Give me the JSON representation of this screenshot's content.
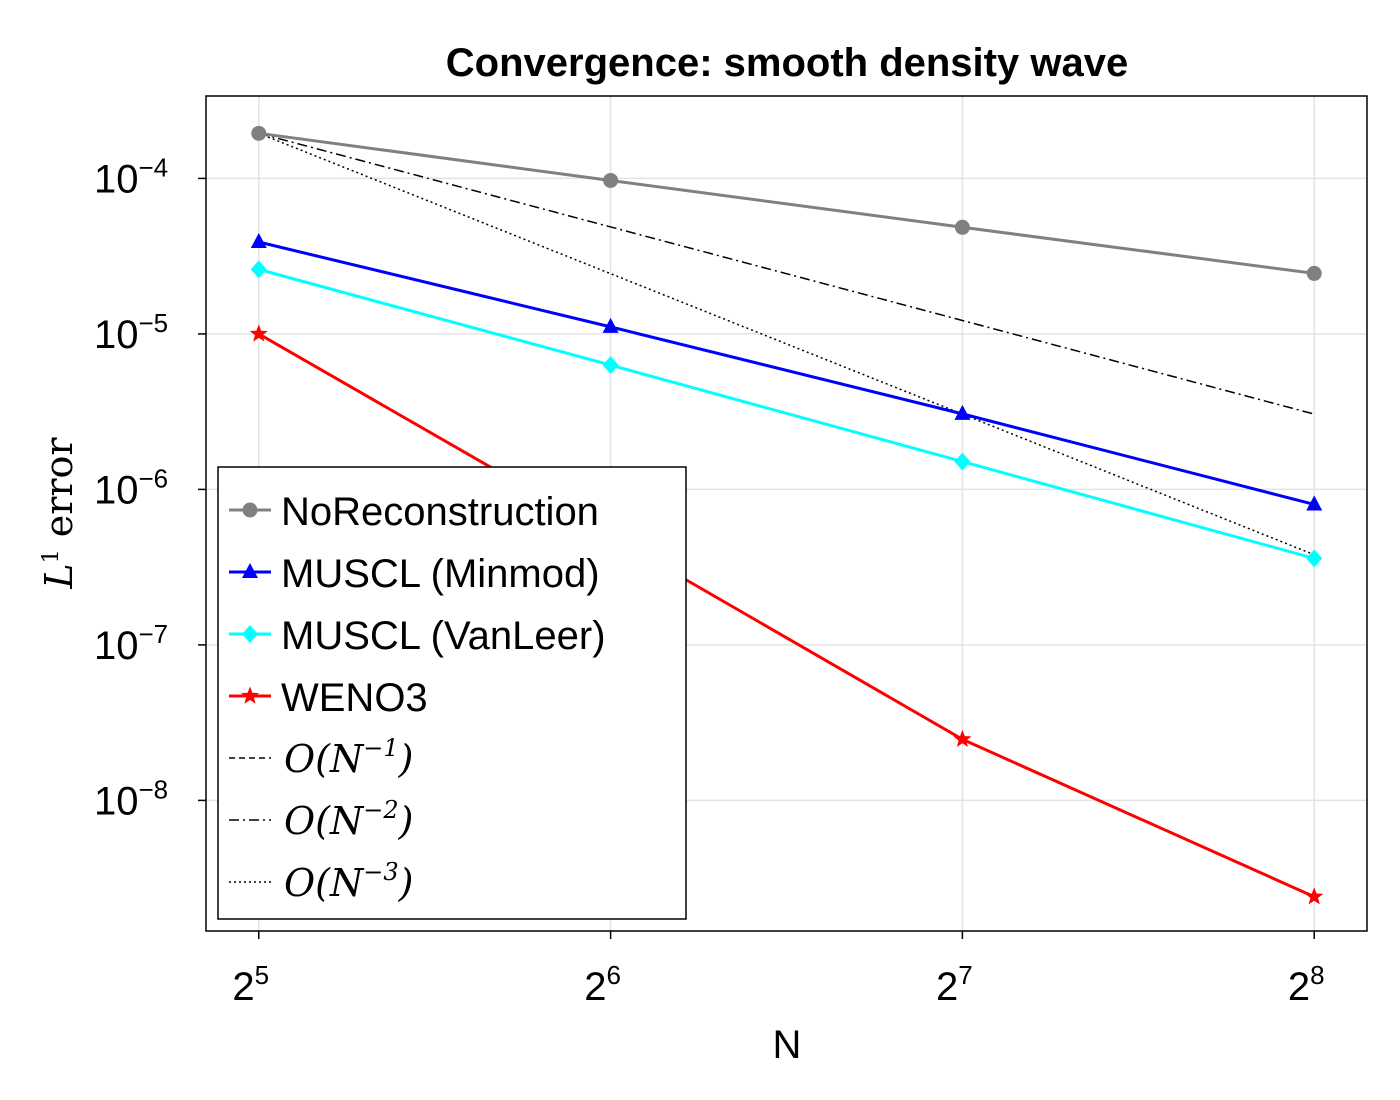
{
  "chart_data": {
    "type": "line",
    "title": "Convergence: smooth density wave",
    "xlabel": "N",
    "ylabel": "L¹ error",
    "ylabel_parts": {
      "base": "L",
      "sup": "1",
      "rest": " error"
    },
    "x_scale": "log2",
    "y_scale": "log10",
    "x": [
      32,
      64,
      128,
      256
    ],
    "xlim_log2": [
      4.85,
      8.15
    ],
    "ylim_log10": [
      -8.84,
      -3.47
    ],
    "x_ticks": [
      {
        "base": "2",
        "exp": "5",
        "value": 5
      },
      {
        "base": "2",
        "exp": "6",
        "value": 6
      },
      {
        "base": "2",
        "exp": "7",
        "value": 7
      },
      {
        "base": "2",
        "exp": "8",
        "value": 8
      }
    ],
    "y_ticks": [
      {
        "base": "10",
        "exp": "−4",
        "value": -4
      },
      {
        "base": "10",
        "exp": "−5",
        "value": -5
      },
      {
        "base": "10",
        "exp": "−6",
        "value": -6
      },
      {
        "base": "10",
        "exp": "−7",
        "value": -7
      },
      {
        "base": "10",
        "exp": "−8",
        "value": -8
      }
    ],
    "grid": true,
    "legend_position": "bottom-left",
    "series": [
      {
        "name": "NoReconstruction",
        "color": "#808080",
        "marker": "circle",
        "style": "solid",
        "values": [
          0.000195,
          9.7e-05,
          4.85e-05,
          2.45e-05
        ]
      },
      {
        "name": "MUSCL (Minmod)",
        "color": "#0000ff",
        "marker": "triangle",
        "style": "solid",
        "values": [
          3.9e-05,
          1.11e-05,
          3.06e-06,
          8e-07
        ]
      },
      {
        "name": "MUSCL (VanLeer)",
        "color": "#00ffff",
        "marker": "diamond",
        "style": "solid",
        "values": [
          2.6e-05,
          6.3e-06,
          1.51e-06,
          3.6e-07
        ]
      },
      {
        "name": "WENO3",
        "color": "#ff0000",
        "marker": "star",
        "style": "solid",
        "values": [
          1e-05,
          5e-07,
          2.47e-08,
          2.4e-09
        ]
      }
    ],
    "reference_lines": [
      {
        "name": "O(N^-1)",
        "label_base": "O(N",
        "label_exp": "−1",
        "label_end": ")",
        "style": "dash",
        "color": "#000000",
        "values": [
          0.000195,
          9.75e-05,
          4.875e-05,
          2.44e-05
        ]
      },
      {
        "name": "O(N^-2)",
        "label_base": "O(N",
        "label_exp": "−2",
        "label_end": ")",
        "style": "dashdot",
        "color": "#000000",
        "values": [
          0.000195,
          4.875e-05,
          1.22e-05,
          3.05e-06
        ]
      },
      {
        "name": "O(N^-3)",
        "label_base": "O(N",
        "label_exp": "−3",
        "label_end": ")",
        "style": "dot",
        "color": "#000000",
        "values": [
          0.000195,
          2.44e-05,
          3.05e-06,
          3.8e-07
        ]
      }
    ]
  }
}
